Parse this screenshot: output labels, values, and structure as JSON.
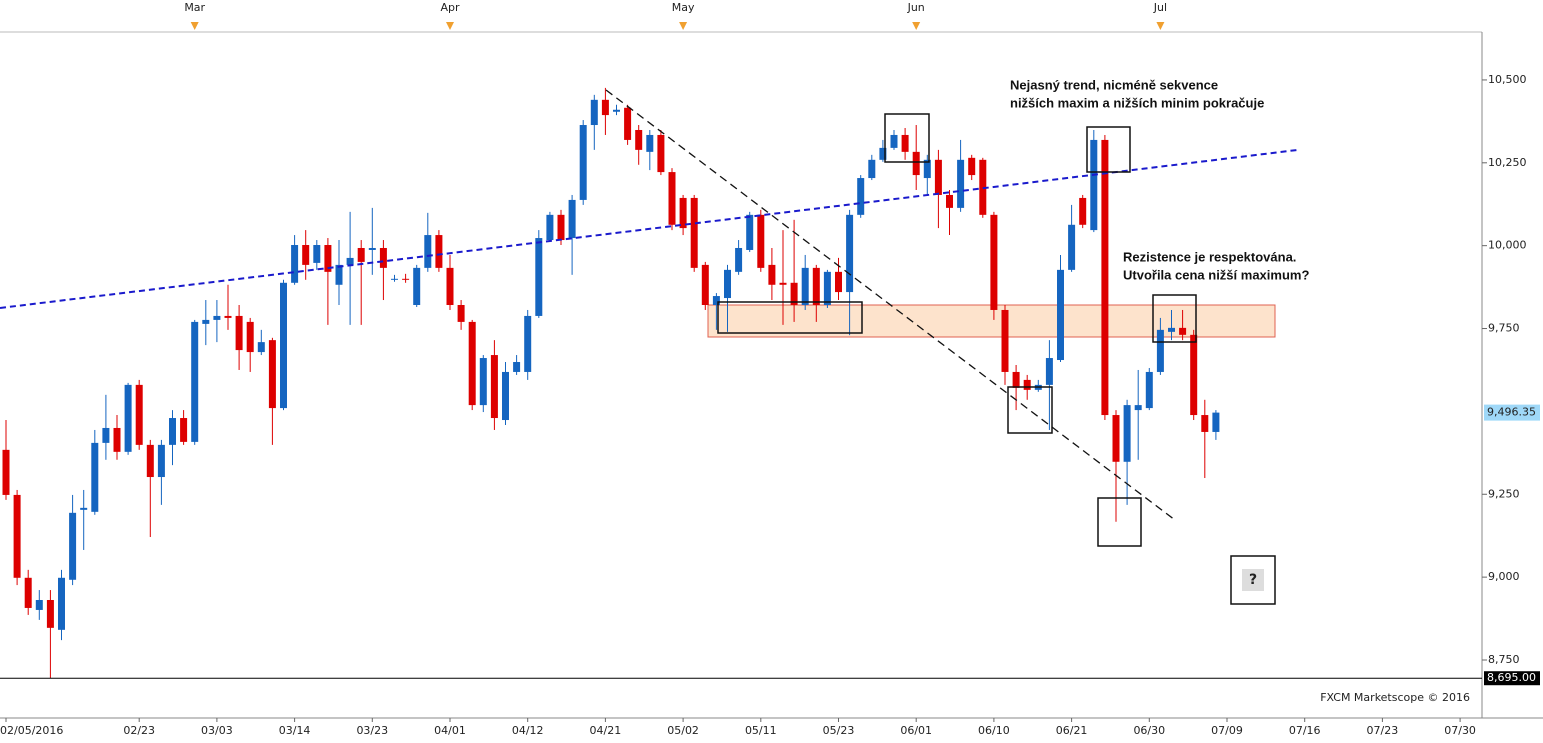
{
  "chart_data": {
    "type": "candlestick",
    "up_color": "#1565c0",
    "down_color": "#dd0000",
    "categories": [
      "02/05/2016",
      null,
      null,
      null,
      null,
      null,
      null,
      null,
      null,
      null,
      null,
      null,
      "02/23",
      null,
      null,
      null,
      null,
      null,
      null,
      "03/03",
      null,
      null,
      null,
      null,
      null,
      null,
      "03/14",
      null,
      null,
      null,
      null,
      null,
      null,
      "03/23",
      null,
      null,
      null,
      null,
      null,
      null,
      "04/01",
      null,
      null,
      null,
      null,
      null,
      null,
      "04/12",
      null,
      null,
      null,
      null,
      null,
      null,
      "04/21",
      null,
      null,
      null,
      null,
      null,
      null,
      "05/02",
      null,
      null,
      null,
      null,
      null,
      null,
      "05/11",
      null,
      null,
      null,
      null,
      null,
      null,
      "05/23",
      null,
      null,
      null,
      null,
      null,
      null,
      "06/01",
      null,
      null,
      null,
      null,
      null,
      null,
      "06/10",
      null,
      null,
      null,
      null,
      null,
      null,
      "06/21",
      null,
      null,
      null,
      null,
      null,
      null,
      "06/30",
      null,
      null,
      null,
      null,
      null,
      null,
      "07/09",
      null,
      null,
      null,
      null,
      null,
      null,
      "07/16",
      null,
      null,
      null,
      null,
      null,
      null,
      "07/23",
      null,
      null,
      null,
      null,
      null,
      null,
      "07/30"
    ],
    "months": [
      null,
      null,
      null,
      null,
      null,
      null,
      null,
      null,
      null,
      null,
      null,
      null,
      null,
      null,
      null,
      null,
      null,
      "Mar",
      null,
      null,
      null,
      null,
      null,
      null,
      null,
      null,
      null,
      null,
      null,
      null,
      null,
      null,
      null,
      null,
      null,
      null,
      null,
      null,
      null,
      null,
      "Apr",
      null,
      null,
      null,
      null,
      null,
      null,
      null,
      null,
      null,
      null,
      null,
      null,
      null,
      null,
      null,
      null,
      null,
      null,
      null,
      null,
      "May",
      null,
      null,
      null,
      null,
      null,
      null,
      null,
      null,
      null,
      null,
      null,
      null,
      null,
      null,
      null,
      null,
      null,
      null,
      null,
      null,
      "Jun",
      null,
      null,
      null,
      null,
      null,
      null,
      null,
      null,
      null,
      null,
      null,
      null,
      null,
      null,
      null,
      null,
      null,
      null,
      null,
      null,
      null,
      "Jul",
      null,
      null,
      null,
      null,
      null,
      null,
      null,
      null,
      null,
      null,
      null,
      null,
      null,
      null,
      null,
      null,
      null,
      null,
      null,
      null,
      null,
      null,
      null,
      null,
      null,
      null,
      null
    ],
    "open": [
      9384,
      9248,
      8998,
      8901,
      8931,
      8841,
      8992,
      9203,
      9197,
      9405,
      9450,
      9378,
      9580,
      9399,
      9302,
      9399,
      9480,
      9408,
      9764,
      9776,
      9788,
      9788,
      9770,
      9679,
      9715,
      9510,
      9888,
      10002,
      9948,
      10002,
      9882,
      9942,
      9993,
      9987,
      9993,
      9897,
      9900,
      9821,
      9933,
      10032,
      9933,
      9821,
      9770,
      9519,
      9670,
      9474,
      9619,
      9619,
      9788,
      10017,
      10093,
      10023,
      10138,
      10364,
      10440,
      10404,
      10416,
      10349,
      10283,
      10334,
      10222,
      10144,
      10144,
      9942,
      9821,
      9842,
      9921,
      9987,
      10093,
      9942,
      9888,
      9888,
      9821,
      9933,
      9821,
      9921,
      9860,
      10093,
      10204,
      10259,
      10295,
      10334,
      10283,
      10204,
      10259,
      10153,
      10114,
      10265,
      10259,
      10093,
      9806,
      9619,
      9595,
      9565,
      9580,
      9655,
      9927,
      10144,
      10047,
      10319,
      9489,
      9348,
      9504,
      9510,
      9619,
      9740,
      9752,
      9731,
      9489,
      9438,
      null,
      null,
      null,
      null,
      null,
      null,
      null,
      null,
      null,
      null,
      null,
      null,
      null,
      null,
      null,
      null,
      null,
      null,
      null,
      null,
      null,
      null
    ],
    "high": [
      9474,
      9263,
      9022,
      8961,
      8961,
      9022,
      9248,
      9263,
      9444,
      9550,
      9489,
      9586,
      9595,
      9414,
      9414,
      9504,
      9504,
      9776,
      9836,
      9836,
      9882,
      9821,
      9782,
      9746,
      9722,
      9897,
      10032,
      10047,
      10017,
      10023,
      10017,
      10102,
      10017,
      10114,
      10017,
      9912,
      9915,
      9942,
      10099,
      10047,
      9972,
      9836,
      9776,
      9670,
      9715,
      9649,
      9670,
      9806,
      10047,
      10102,
      10108,
      10153,
      10379,
      10455,
      10476,
      10425,
      10425,
      10364,
      10349,
      10349,
      10234,
      10153,
      10153,
      9951,
      9857,
      9942,
      10017,
      10102,
      10108,
      9993,
      10047,
      10078,
      9972,
      9942,
      9927,
      9963,
      10108,
      10213,
      10274,
      10319,
      10349,
      10355,
      10364,
      10274,
      10289,
      10168,
      10319,
      10274,
      10265,
      10102,
      9821,
      9640,
      9610,
      9595,
      9715,
      9972,
      10123,
      10153,
      10349,
      10334,
      9504,
      9535,
      9625,
      9631,
      9782,
      9806,
      9806,
      9746,
      9535,
      9504,
      null,
      null,
      null,
      null,
      null,
      null,
      null,
      null,
      null,
      null,
      null,
      null,
      null,
      null,
      null,
      null,
      null,
      null,
      null,
      null,
      null,
      null
    ],
    "low": [
      9233,
      8976,
      8886,
      8871,
      8695,
      8810,
      8976,
      9082,
      9188,
      9354,
      9354,
      9369,
      9384,
      9121,
      9218,
      9338,
      9399,
      9399,
      9700,
      9709,
      9746,
      9625,
      9619,
      9670,
      9399,
      9504,
      9882,
      9897,
      9927,
      9761,
      9821,
      9761,
      9761,
      9912,
      9836,
      9891,
      9888,
      9815,
      9921,
      9921,
      9806,
      9746,
      9504,
      9498,
      9444,
      9459,
      9610,
      9595,
      9782,
      10011,
      10002,
      9912,
      10123,
      10289,
      10334,
      10394,
      10304,
      10244,
      10228,
      10213,
      10047,
      10032,
      9921,
      9806,
      9746,
      9740,
      9912,
      9981,
      9921,
      9836,
      9761,
      9770,
      9806,
      9770,
      9812,
      9836,
      9730,
      10084,
      10198,
      10253,
      10289,
      10259,
      10168,
      10153,
      10053,
      10032,
      10102,
      10198,
      10084,
      9776,
      9580,
      9504,
      9535,
      9559,
      9444,
      9649,
      9921,
      10053,
      10041,
      9474,
      9167,
      9218,
      9354,
      9504,
      9610,
      9715,
      9715,
      9474,
      9299,
      9414,
      null,
      null,
      null,
      null,
      null,
      null,
      null,
      null,
      null,
      null,
      null,
      null,
      null,
      null,
      null,
      null,
      null,
      null,
      null,
      null,
      null,
      null
    ],
    "close": [
      9248,
      8998,
      8907,
      8931,
      8847,
      8998,
      9194,
      9209,
      9405,
      9450,
      9378,
      9580,
      9399,
      9302,
      9399,
      9480,
      9408,
      9770,
      9776,
      9788,
      9782,
      9685,
      9679,
      9709,
      9510,
      9888,
      10002,
      9942,
      10002,
      9921,
      9942,
      9963,
      9951,
      9993,
      9933,
      9900,
      9897,
      9933,
      10032,
      9933,
      9821,
      9770,
      9519,
      9661,
      9480,
      9619,
      9649,
      9788,
      10023,
      10093,
      10017,
      10138,
      10364,
      10440,
      10394,
      10410,
      10319,
      10289,
      10334,
      10222,
      10063,
      10053,
      9933,
      9821,
      9848,
      9927,
      9993,
      10093,
      9933,
      9882,
      9882,
      9821,
      9933,
      9821,
      9921,
      9860,
      10093,
      10204,
      10259,
      10295,
      10334,
      10283,
      10213,
      10259,
      10153,
      10114,
      10259,
      10213,
      10093,
      9806,
      9619,
      9571,
      9565,
      9580,
      9661,
      9927,
      10063,
      10063,
      10319,
      9489,
      9348,
      9519,
      9519,
      9619,
      9746,
      9752,
      9731,
      9489,
      9438,
      9496.35,
      null,
      null,
      null,
      null,
      null,
      null,
      null,
      null,
      null,
      null,
      null,
      null,
      null,
      null,
      null,
      null,
      null,
      null,
      null,
      null,
      null,
      null
    ],
    "ylim": [
      8575,
      10711
    ],
    "yticks": [
      {
        "value": 8750,
        "label": "8,750"
      },
      {
        "value": 9000,
        "label": "9,000"
      },
      {
        "value": 9250,
        "label": "9,250"
      },
      {
        "value": 9750,
        "label": "9,750"
      },
      {
        "value": 10000,
        "label": "10,000"
      },
      {
        "value": 10250,
        "label": "10,250"
      },
      {
        "value": 10500,
        "label": "10,500"
      }
    ],
    "last_price": {
      "value": 9496.35,
      "label": "9,496.35"
    },
    "low_line": {
      "value": 8695,
      "label": "8,695.00"
    },
    "annotations": [
      "Nejasný trend, nicméně sekvence",
      "nižších maxim a nižších minim pokračuje",
      "Rezistence je respektována.",
      "Utvořila cena nižší maximum?",
      "?"
    ],
    "watermark": "FXCM Marketscope © 2016"
  }
}
